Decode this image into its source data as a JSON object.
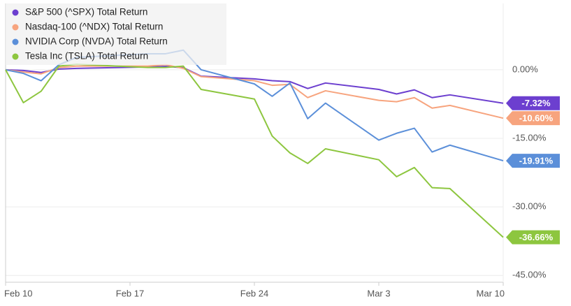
{
  "chart_data": {
    "type": "line",
    "x": [
      "Feb 10",
      "Feb 11",
      "Feb 12",
      "Feb 13",
      "Feb 14",
      "Feb 18",
      "Feb 19",
      "Feb 20",
      "Feb 21",
      "Feb 24",
      "Feb 25",
      "Feb 26",
      "Feb 27",
      "Feb 28",
      "Mar 3",
      "Mar 4",
      "Mar 5",
      "Mar 6",
      "Mar 7",
      "Mar 10"
    ],
    "xlim": [
      "Feb 10",
      "Mar 10"
    ],
    "xticks": [
      "Feb 10",
      "Feb 17",
      "Feb 24",
      "Mar 3",
      "Mar 10"
    ],
    "ylim": [
      -46.5,
      14.5
    ],
    "yticks": [
      {
        "value": 0,
        "label": "0.00%"
      },
      {
        "value": -15,
        "label": "-15.00%"
      },
      {
        "value": -30,
        "label": "-30.00%"
      },
      {
        "value": -45,
        "label": "-45.00%"
      }
    ],
    "grid": true,
    "legend": "top-left",
    "series": [
      {
        "name": "S&P 500 (^SPX) Total Return",
        "color": "#6c3fcf",
        "values": [
          0,
          -0.15,
          -0.6,
          0.15,
          0.3,
          0.6,
          0.75,
          0.45,
          -1.4,
          -2.0,
          -2.4,
          -2.6,
          -4.1,
          -2.9,
          -4.3,
          -5.3,
          -4.4,
          -6.1,
          -5.5,
          -7.32
        ],
        "value_labels": [
          null,
          null,
          null,
          null,
          null,
          null,
          null,
          null,
          null,
          null,
          null,
          null,
          null,
          null,
          null,
          null,
          null,
          null,
          null,
          "-7.32%"
        ]
      },
      {
        "name": "Nasdaq-100 (^NDX) Total Return",
        "color": "#f7a47e",
        "values": [
          0,
          -0.5,
          -0.9,
          0.5,
          0.8,
          0.8,
          1.1,
          0.3,
          -1.5,
          -2.4,
          -3.4,
          -3.2,
          -6.1,
          -4.6,
          -6.7,
          -7.0,
          -6.1,
          -8.4,
          -7.8,
          -10.6
        ],
        "value_labels": [
          null,
          null,
          null,
          null,
          null,
          null,
          null,
          null,
          null,
          null,
          null,
          null,
          null,
          null,
          null,
          null,
          null,
          null,
          null,
          "-10.60%"
        ]
      },
      {
        "name": "NVIDIA Corp (NVDA) Total Return",
        "color": "#5b8fd9",
        "values": [
          0,
          -0.8,
          -2.4,
          1.1,
          2.7,
          3.5,
          3.5,
          4.3,
          0,
          -3.1,
          -5.8,
          -2.9,
          -10.7,
          -7.3,
          -15.4,
          -13.9,
          -12.8,
          -18.0,
          -16.5,
          -19.91
        ],
        "value_labels": [
          null,
          null,
          null,
          null,
          null,
          null,
          null,
          null,
          null,
          null,
          null,
          null,
          null,
          null,
          null,
          null,
          null,
          null,
          null,
          "-19.91%"
        ]
      },
      {
        "name": "Tesla Inc (TSLA) Total Return",
        "color": "#8dc63f",
        "values": [
          0,
          -7.2,
          -4.7,
          0.8,
          1.2,
          0.5,
          0.5,
          0.8,
          -4.3,
          -6.4,
          -14.5,
          -18.2,
          -20.5,
          -17.3,
          -19.7,
          -23.4,
          -21.4,
          -25.8,
          -26.0,
          -36.66
        ],
        "value_labels": [
          null,
          null,
          null,
          null,
          null,
          null,
          null,
          null,
          null,
          null,
          null,
          null,
          null,
          null,
          null,
          null,
          null,
          null,
          null,
          "-36.66%"
        ]
      }
    ]
  }
}
